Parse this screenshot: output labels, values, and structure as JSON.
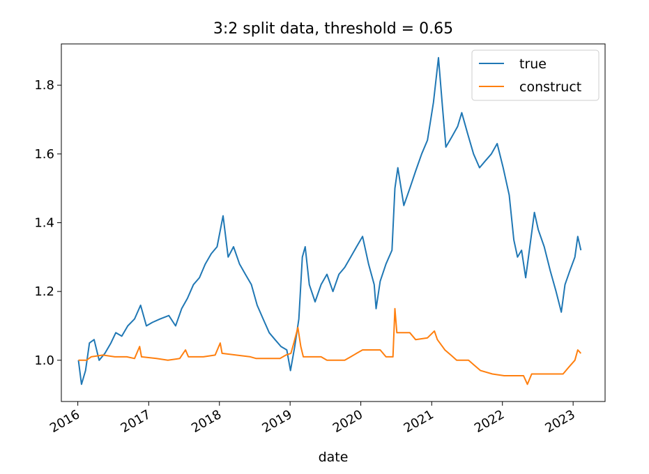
{
  "chart_data": {
    "type": "line",
    "title": "3:2 split data, threshold = 0.65",
    "xlabel": "date",
    "ylabel": "",
    "xlim": [
      "2015-10-08",
      "2023-06-15"
    ],
    "ylim": [
      0.88,
      1.92
    ],
    "x_ticks": [
      "2016",
      "2017",
      "2018",
      "2019",
      "2020",
      "2021",
      "2022",
      "2023"
    ],
    "y_ticks": [
      "1.0",
      "1.2",
      "1.4",
      "1.6",
      "1.8"
    ],
    "legend": {
      "position": "upper right",
      "entries": [
        "true",
        "construct"
      ]
    },
    "grid": false,
    "series": [
      {
        "name": "true",
        "color": "#1f77b4",
        "points": [
          [
            "2016-01-04",
            1.0
          ],
          [
            "2016-01-20",
            0.93
          ],
          [
            "2016-02-10",
            0.97
          ],
          [
            "2016-03-01",
            1.05
          ],
          [
            "2016-03-25",
            1.06
          ],
          [
            "2016-04-20",
            1.0
          ],
          [
            "2016-05-20",
            1.02
          ],
          [
            "2016-06-20",
            1.05
          ],
          [
            "2016-07-15",
            1.08
          ],
          [
            "2016-08-15",
            1.07
          ],
          [
            "2016-09-15",
            1.1
          ],
          [
            "2016-10-20",
            1.12
          ],
          [
            "2016-11-20",
            1.16
          ],
          [
            "2016-12-20",
            1.1
          ],
          [
            "2017-01-20",
            1.11
          ],
          [
            "2017-03-01",
            1.12
          ],
          [
            "2017-04-15",
            1.13
          ],
          [
            "2017-05-20",
            1.1
          ],
          [
            "2017-06-20",
            1.15
          ],
          [
            "2017-07-20",
            1.18
          ],
          [
            "2017-08-20",
            1.22
          ],
          [
            "2017-09-20",
            1.24
          ],
          [
            "2017-10-20",
            1.28
          ],
          [
            "2017-11-20",
            1.31
          ],
          [
            "2017-12-20",
            1.33
          ],
          [
            "2018-01-20",
            1.42
          ],
          [
            "2018-02-15",
            1.3
          ],
          [
            "2018-03-15",
            1.33
          ],
          [
            "2018-04-15",
            1.28
          ],
          [
            "2018-05-15",
            1.25
          ],
          [
            "2018-06-15",
            1.22
          ],
          [
            "2018-07-15",
            1.16
          ],
          [
            "2018-08-15",
            1.12
          ],
          [
            "2018-09-15",
            1.08
          ],
          [
            "2018-10-15",
            1.06
          ],
          [
            "2018-11-15",
            1.04
          ],
          [
            "2018-12-15",
            1.03
          ],
          [
            "2019-01-03",
            0.97
          ],
          [
            "2019-01-25",
            1.04
          ],
          [
            "2019-02-15",
            1.12
          ],
          [
            "2019-03-05",
            1.3
          ],
          [
            "2019-03-20",
            1.33
          ],
          [
            "2019-04-10",
            1.22
          ],
          [
            "2019-05-10",
            1.17
          ],
          [
            "2019-06-10",
            1.22
          ],
          [
            "2019-07-10",
            1.25
          ],
          [
            "2019-08-10",
            1.2
          ],
          [
            "2019-09-10",
            1.25
          ],
          [
            "2019-10-10",
            1.27
          ],
          [
            "2019-11-10",
            1.3
          ],
          [
            "2019-12-10",
            1.33
          ],
          [
            "2020-01-10",
            1.36
          ],
          [
            "2020-02-10",
            1.28
          ],
          [
            "2020-03-10",
            1.22
          ],
          [
            "2020-03-20",
            1.15
          ],
          [
            "2020-04-10",
            1.23
          ],
          [
            "2020-05-10",
            1.28
          ],
          [
            "2020-06-10",
            1.32
          ],
          [
            "2020-06-25",
            1.5
          ],
          [
            "2020-07-10",
            1.56
          ],
          [
            "2020-08-10",
            1.45
          ],
          [
            "2020-09-10",
            1.5
          ],
          [
            "2020-10-10",
            1.55
          ],
          [
            "2020-11-10",
            1.6
          ],
          [
            "2020-12-10",
            1.64
          ],
          [
            "2021-01-10",
            1.75
          ],
          [
            "2021-02-05",
            1.88
          ],
          [
            "2021-02-25",
            1.74
          ],
          [
            "2021-03-15",
            1.62
          ],
          [
            "2021-04-15",
            1.65
          ],
          [
            "2021-05-15",
            1.68
          ],
          [
            "2021-06-05",
            1.72
          ],
          [
            "2021-07-05",
            1.66
          ],
          [
            "2021-08-05",
            1.6
          ],
          [
            "2021-09-05",
            1.56
          ],
          [
            "2021-10-05",
            1.58
          ],
          [
            "2021-11-05",
            1.6
          ],
          [
            "2021-12-05",
            1.63
          ],
          [
            "2022-01-05",
            1.56
          ],
          [
            "2022-02-05",
            1.48
          ],
          [
            "2022-03-01",
            1.35
          ],
          [
            "2022-03-20",
            1.3
          ],
          [
            "2022-04-10",
            1.32
          ],
          [
            "2022-05-01",
            1.24
          ],
          [
            "2022-05-25",
            1.34
          ],
          [
            "2022-06-15",
            1.43
          ],
          [
            "2022-07-05",
            1.38
          ],
          [
            "2022-08-05",
            1.33
          ],
          [
            "2022-09-05",
            1.26
          ],
          [
            "2022-10-05",
            1.2
          ],
          [
            "2022-11-01",
            1.14
          ],
          [
            "2022-11-20",
            1.22
          ],
          [
            "2022-12-15",
            1.26
          ],
          [
            "2023-01-10",
            1.3
          ],
          [
            "2023-01-25",
            1.36
          ],
          [
            "2023-02-10",
            1.32
          ]
        ]
      },
      {
        "name": "construct",
        "color": "#ff7f0e",
        "points": [
          [
            "2016-01-04",
            1.0
          ],
          [
            "2016-02-15",
            1.0
          ],
          [
            "2016-03-10",
            1.01
          ],
          [
            "2016-05-10",
            1.015
          ],
          [
            "2016-07-10",
            1.01
          ],
          [
            "2016-09-10",
            1.01
          ],
          [
            "2016-10-20",
            1.005
          ],
          [
            "2016-11-15",
            1.04
          ],
          [
            "2016-11-25",
            1.01
          ],
          [
            "2017-02-10",
            1.005
          ],
          [
            "2017-04-10",
            1.0
          ],
          [
            "2017-06-10",
            1.005
          ],
          [
            "2017-07-10",
            1.03
          ],
          [
            "2017-07-25",
            1.01
          ],
          [
            "2017-10-10",
            1.01
          ],
          [
            "2017-12-10",
            1.015
          ],
          [
            "2018-01-05",
            1.05
          ],
          [
            "2018-01-15",
            1.02
          ],
          [
            "2018-06-10",
            1.01
          ],
          [
            "2018-07-10",
            1.005
          ],
          [
            "2018-11-10",
            1.005
          ],
          [
            "2018-12-10",
            1.015
          ],
          [
            "2019-01-05",
            1.02
          ],
          [
            "2019-01-20",
            1.05
          ],
          [
            "2019-02-10",
            1.095
          ],
          [
            "2019-02-25",
            1.04
          ],
          [
            "2019-03-10",
            1.01
          ],
          [
            "2019-06-10",
            1.01
          ],
          [
            "2019-07-10",
            1.0
          ],
          [
            "2019-10-10",
            1.0
          ],
          [
            "2019-11-10",
            1.01
          ],
          [
            "2019-12-10",
            1.02
          ],
          [
            "2020-01-10",
            1.03
          ],
          [
            "2020-04-10",
            1.03
          ],
          [
            "2020-05-10",
            1.01
          ],
          [
            "2020-06-15",
            1.01
          ],
          [
            "2020-06-25",
            1.15
          ],
          [
            "2020-07-05",
            1.08
          ],
          [
            "2020-09-10",
            1.08
          ],
          [
            "2020-10-10",
            1.06
          ],
          [
            "2020-12-10",
            1.065
          ],
          [
            "2021-01-15",
            1.085
          ],
          [
            "2021-01-30",
            1.06
          ],
          [
            "2021-03-10",
            1.03
          ],
          [
            "2021-04-10",
            1.015
          ],
          [
            "2021-05-10",
            1.0
          ],
          [
            "2021-07-10",
            1.0
          ],
          [
            "2021-08-10",
            0.985
          ],
          [
            "2021-09-10",
            0.97
          ],
          [
            "2021-11-10",
            0.96
          ],
          [
            "2022-01-10",
            0.955
          ],
          [
            "2022-04-20",
            0.955
          ],
          [
            "2022-05-10",
            0.93
          ],
          [
            "2022-06-01",
            0.96
          ],
          [
            "2022-09-10",
            0.96
          ],
          [
            "2022-11-10",
            0.96
          ],
          [
            "2022-12-10",
            0.98
          ],
          [
            "2023-01-10",
            1.0
          ],
          [
            "2023-01-25",
            1.03
          ],
          [
            "2023-02-10",
            1.02
          ]
        ]
      }
    ]
  }
}
